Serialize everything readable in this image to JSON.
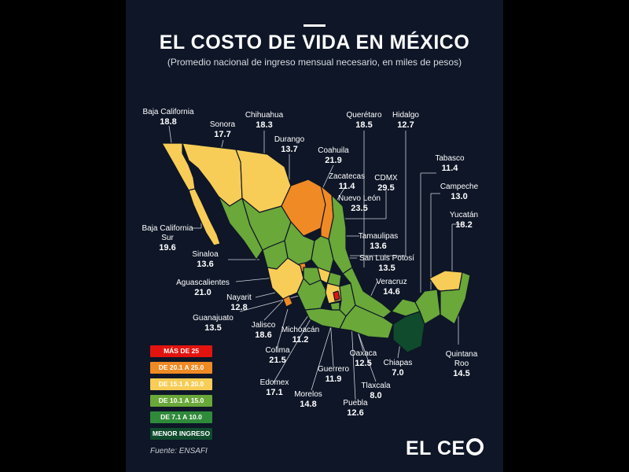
{
  "header": {
    "title": "EL COSTO DE VIDA EN MÉXICO",
    "subtitle": "(Promedio nacional de ingreso mensual necesario, en miles de pesos)"
  },
  "states": [
    {
      "id": "baja-california",
      "name": "Baja California",
      "value": "18.8"
    },
    {
      "id": "sonora",
      "name": "Sonora",
      "value": "17.7"
    },
    {
      "id": "chihuahua",
      "name": "Chihuahua",
      "value": "18.3"
    },
    {
      "id": "durango",
      "name": "Durango",
      "value": "13.7"
    },
    {
      "id": "coahuila",
      "name": "Coahuila",
      "value": "21.9"
    },
    {
      "id": "queretaro",
      "name": "Querétaro",
      "value": "18.5"
    },
    {
      "id": "hidalgo",
      "name": "Hidalgo",
      "value": "12.7"
    },
    {
      "id": "tabasco",
      "name": "Tabasco",
      "value": "11.4"
    },
    {
      "id": "zacatecas",
      "name": "Zacatecas",
      "value": "11.4"
    },
    {
      "id": "cdmx",
      "name": "CDMX",
      "value": "29.5"
    },
    {
      "id": "campeche",
      "name": "Campeche",
      "value": "13.0"
    },
    {
      "id": "nuevo-leon",
      "name": "Nuevo León",
      "value": "23.5"
    },
    {
      "id": "yucatan",
      "name": "Yucatán",
      "value": "18.2"
    },
    {
      "id": "baja-california-sur",
      "name": "Baja California",
      "name2": "Sur",
      "value": "19.6"
    },
    {
      "id": "tamaulipas",
      "name": "Tamaulipas",
      "value": "13.6"
    },
    {
      "id": "sinaloa",
      "name": "Sinaloa",
      "value": "13.6"
    },
    {
      "id": "san-luis-potosi",
      "name": "San Luis Potosí",
      "value": "13.5"
    },
    {
      "id": "aguascalientes",
      "name": "Aguascalientes",
      "value": "21.0"
    },
    {
      "id": "veracruz",
      "name": "Veracruz",
      "value": "14.6"
    },
    {
      "id": "nayarit",
      "name": "Nayarit",
      "value": "12.8"
    },
    {
      "id": "guanajuato",
      "name": "Guanajuato",
      "value": "13.5"
    },
    {
      "id": "jalisco",
      "name": "Jalisco",
      "value": "18.6"
    },
    {
      "id": "michoacan",
      "name": "Michoacán",
      "value": "11.2"
    },
    {
      "id": "quintana-roo",
      "name": "Quintana",
      "name2": "Roo",
      "value": "14.5"
    },
    {
      "id": "colima",
      "name": "Colima",
      "value": "21.5"
    },
    {
      "id": "oaxaca",
      "name": "Oaxaca",
      "value": "12.5"
    },
    {
      "id": "chiapas",
      "name": "Chiapas",
      "value": "7.0"
    },
    {
      "id": "guerrero",
      "name": "Guerrero",
      "value": "11.9"
    },
    {
      "id": "edomex",
      "name": "Edomex",
      "value": "17.1"
    },
    {
      "id": "tlaxcala",
      "name": "Tlaxcala",
      "value": "8.0"
    },
    {
      "id": "morelos",
      "name": "Morelos",
      "value": "14.8"
    },
    {
      "id": "puebla",
      "name": "Puebla",
      "value": "12.6"
    }
  ],
  "legend": [
    {
      "label": "MÁS DE 25",
      "color": "#e3140f"
    },
    {
      "label": "DE 20.1 A 25.0",
      "color": "#f08a24"
    },
    {
      "label": "DE 15.1 A 20.0",
      "color": "#f7cd57"
    },
    {
      "label": "DE 10.1 A 15.0",
      "color": "#6aa83a"
    },
    {
      "label": "DE 7.1 A 10.0",
      "color": "#2f8a3a"
    },
    {
      "label": "MENOR INGRESO",
      "color": "#0f4b2c"
    }
  ],
  "footer": {
    "source": "Fuente:  ENSAFI",
    "logo_text": "EL CE"
  }
}
